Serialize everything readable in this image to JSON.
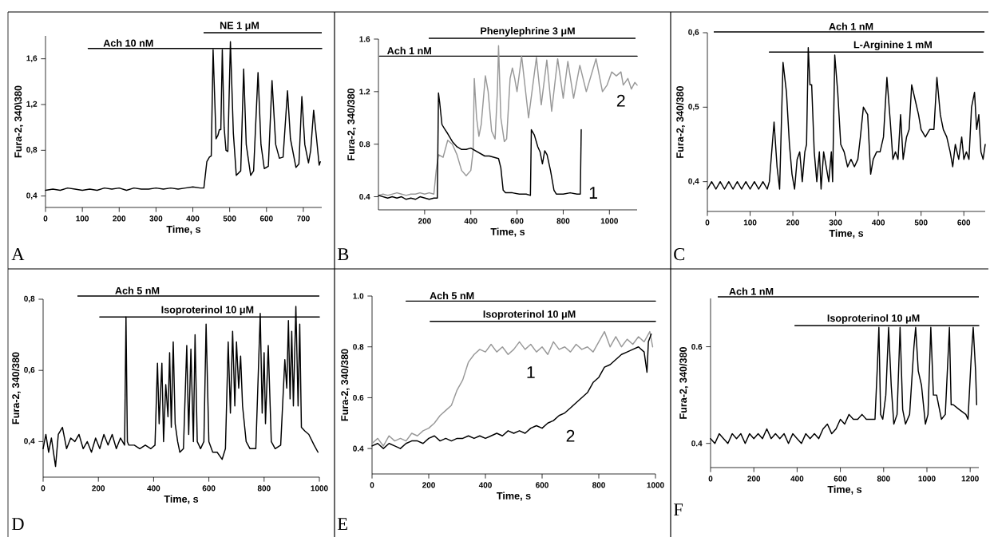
{
  "chart_data": [
    {
      "type": "line",
      "xlabel": "Time, s",
      "ylabel": "Fura-2, 340\\380",
      "xlim": [
        0,
        750
      ],
      "ylim": [
        0.3,
        1.8
      ],
      "xticks": [
        0,
        100,
        200,
        300,
        400,
        500,
        600,
        700
      ],
      "yticks": [
        {
          "value": 0.4,
          "label": "0,4"
        },
        {
          "value": 0.8,
          "label": "0,8"
        },
        {
          "value": 1.2,
          "label": "1,2"
        },
        {
          "value": 1.6,
          "label": "1,6"
        }
      ],
      "annotations": [
        "A",
        "NE 1 μM",
        {
          "text": "Ach 10 nM",
          "x": 225,
          "y": 1.69
        }
      ],
      "series": [
        {
          "color": "#000000",
          "x": [
            116,
            750
          ],
          "values": [
            1.69,
            1.69
          ]
        },
        {
          "color": "#000000",
          "x": [
            0,
            20,
            40,
            60,
            80,
            100,
            120,
            140,
            160,
            180,
            200,
            220,
            240,
            260,
            280,
            300,
            320,
            340,
            360,
            380,
            400,
            420,
            430,
            438,
            445,
            450,
            455,
            463,
            468,
            472,
            476,
            480,
            485,
            490,
            495,
            502,
            510,
            518,
            530,
            538,
            545,
            557,
            565,
            577,
            585,
            594,
            605,
            615,
            625,
            635,
            645,
            657,
            665,
            680,
            688,
            696,
            704,
            714,
            720,
            728,
            736,
            743,
            746
          ],
          "values": [
            0.45,
            0.46,
            0.45,
            0.47,
            0.46,
            0.45,
            0.46,
            0.45,
            0.47,
            0.46,
            0.47,
            0.45,
            0.47,
            0.46,
            0.46,
            0.47,
            0.46,
            0.47,
            0.46,
            0.47,
            0.48,
            0.47,
            0.47,
            0.7,
            0.74,
            0.75,
            1.68,
            0.9,
            0.93,
            0.98,
            0.98,
            1.68,
            1.0,
            0.8,
            0.79,
            1.75,
            0.95,
            0.58,
            0.62,
            1.51,
            0.85,
            0.58,
            0.62,
            1.48,
            0.85,
            0.64,
            0.66,
            1.41,
            0.85,
            0.73,
            0.74,
            1.32,
            0.9,
            0.65,
            0.68,
            1.27,
            0.85,
            0.69,
            0.8,
            1.15,
            0.9,
            0.67,
            0.7
          ]
        }
      ]
    },
    {
      "type": "line",
      "xlabel": "Time, s",
      "ylabel": "Fura-2, 340/380",
      "xlim": [
        0,
        1120
      ],
      "ylim": [
        0.3,
        1.6
      ],
      "xticks": [
        200,
        400,
        600,
        800,
        1000
      ],
      "yticks": [
        0.4,
        0.8,
        1.2,
        1.6
      ],
      "annotations": [
        "B",
        "Phenylephrine 3 μM",
        {
          "text": "Ach 1 nM",
          "x": 134,
          "y": 1.47
        }
      ],
      "series": [
        {
          "color": "#000000",
          "x": [
            5,
            1120
          ],
          "values": [
            1.47,
            1.47
          ]
        },
        {
          "name": "2",
          "color": "#999999",
          "x": [
            0,
            20,
            40,
            60,
            80,
            100,
            120,
            140,
            160,
            180,
            200,
            220,
            240,
            250,
            260,
            280,
            300,
            320,
            340,
            360,
            380,
            400,
            410,
            415,
            425,
            435,
            445,
            463,
            475,
            490,
            505,
            515,
            520,
            530,
            545,
            555,
            570,
            580,
            590,
            600,
            620,
            650,
            684,
            705,
            729,
            750,
            776,
            800,
            820,
            845,
            872,
            900,
            942,
            970,
            990,
            1010,
            1030,
            1050,
            1060,
            1080,
            1095,
            1110,
            1120
          ],
          "values": [
            0.41,
            0.42,
            0.41,
            0.42,
            0.43,
            0.42,
            0.41,
            0.42,
            0.42,
            0.43,
            0.42,
            0.43,
            0.42,
            0.6,
            0.72,
            0.7,
            0.83,
            0.8,
            0.72,
            0.6,
            0.56,
            0.6,
            0.75,
            1.3,
            1.0,
            0.86,
            0.95,
            1.32,
            1.2,
            0.9,
            0.84,
            1.2,
            1.55,
            1.0,
            0.82,
            0.84,
            1.3,
            1.38,
            1.3,
            1.2,
            1.47,
            1.0,
            1.46,
            1.1,
            1.44,
            1.05,
            1.45,
            1.15,
            1.43,
            1.15,
            1.4,
            1.2,
            1.45,
            1.2,
            1.25,
            1.35,
            1.32,
            1.35,
            1.25,
            1.3,
            1.22,
            1.27,
            1.25
          ]
        },
        {
          "name": "1",
          "color": "#000000",
          "x": [
            0,
            20,
            40,
            60,
            80,
            100,
            120,
            140,
            160,
            180,
            200,
            220,
            240,
            255,
            260,
            265,
            275,
            285,
            300,
            320,
            340,
            360,
            380,
            400,
            420,
            440,
            460,
            480,
            500,
            520,
            530,
            540,
            550,
            580,
            610,
            640,
            658,
            662,
            675,
            690,
            700,
            710,
            720,
            730,
            745,
            760,
            770,
            800,
            830,
            860,
            874,
            878
          ],
          "values": [
            0.41,
            0.4,
            0.39,
            0.4,
            0.39,
            0.4,
            0.38,
            0.39,
            0.38,
            0.4,
            0.39,
            0.38,
            0.39,
            0.39,
            1.19,
            1.12,
            0.95,
            0.92,
            0.88,
            0.82,
            0.78,
            0.76,
            0.76,
            0.77,
            0.75,
            0.73,
            0.71,
            0.71,
            0.7,
            0.69,
            0.62,
            0.45,
            0.43,
            0.43,
            0.42,
            0.42,
            0.41,
            0.91,
            0.87,
            0.78,
            0.74,
            0.65,
            0.75,
            0.72,
            0.6,
            0.45,
            0.42,
            0.42,
            0.43,
            0.42,
            0.42,
            0.91
          ]
        }
      ]
    },
    {
      "type": "line",
      "xlabel": "Time, s",
      "ylabel": "Fura-2, 340/380",
      "xlim": [
        0,
        650
      ],
      "ylim": [
        0.36,
        0.6
      ],
      "xticks": [
        0,
        100,
        200,
        300,
        400,
        500,
        600
      ],
      "yticks": [
        {
          "value": 0.4,
          "label": "0,4"
        },
        {
          "value": 0.5,
          "label": "0,5"
        },
        {
          "value": 0.6,
          "label": "0,6"
        }
      ],
      "annotations": [
        "C",
        "Ach 1 nM",
        {
          "text": "L-Arginine 1 mM",
          "x": 434,
          "y": 0.574
        }
      ],
      "series": [
        {
          "color": "#000000",
          "x": [
            145,
            645
          ],
          "values": [
            0.574,
            0.574
          ]
        },
        {
          "color": "#000000",
          "x": [
            0,
            10,
            20,
            30,
            40,
            50,
            60,
            70,
            80,
            90,
            100,
            110,
            120,
            130,
            140,
            145,
            156,
            163,
            169,
            177,
            185,
            192,
            198,
            204,
            210,
            216,
            222,
            228,
            232,
            236,
            240,
            244,
            250,
            256,
            262,
            266,
            272,
            278,
            284,
            290,
            293,
            298,
            305,
            312,
            320,
            328,
            336,
            344,
            352,
            358,
            365,
            375,
            382,
            388,
            396,
            404,
            412,
            420,
            428,
            434,
            440,
            446,
            452,
            458,
            466,
            472,
            478,
            486,
            494,
            500,
            510,
            520,
            530,
            537,
            545,
            552,
            560,
            568,
            574,
            580,
            588,
            595,
            600,
            606,
            612,
            618,
            625,
            630,
            635,
            640,
            645,
            650
          ],
          "values": [
            0.39,
            0.4,
            0.39,
            0.4,
            0.39,
            0.4,
            0.39,
            0.4,
            0.39,
            0.4,
            0.39,
            0.4,
            0.39,
            0.4,
            0.39,
            0.4,
            0.48,
            0.42,
            0.39,
            0.56,
            0.52,
            0.45,
            0.41,
            0.39,
            0.43,
            0.44,
            0.4,
            0.44,
            0.45,
            0.58,
            0.53,
            0.53,
            0.44,
            0.4,
            0.44,
            0.39,
            0.44,
            0.42,
            0.4,
            0.44,
            0.4,
            0.57,
            0.52,
            0.45,
            0.44,
            0.42,
            0.43,
            0.42,
            0.43,
            0.46,
            0.5,
            0.49,
            0.41,
            0.43,
            0.44,
            0.44,
            0.46,
            0.54,
            0.48,
            0.43,
            0.44,
            0.43,
            0.49,
            0.43,
            0.46,
            0.47,
            0.53,
            0.51,
            0.49,
            0.47,
            0.46,
            0.47,
            0.47,
            0.54,
            0.49,
            0.47,
            0.46,
            0.44,
            0.42,
            0.45,
            0.43,
            0.46,
            0.43,
            0.44,
            0.43,
            0.5,
            0.52,
            0.47,
            0.49,
            0.44,
            0.43,
            0.45
          ]
        }
      ]
    },
    {
      "type": "line",
      "xlabel": "Time, s",
      "ylabel": "Fura-2, 340/380",
      "xlim": [
        0,
        1000
      ],
      "ylim": [
        0.3,
        0.8
      ],
      "xticks": [
        0,
        200,
        400,
        600,
        800,
        1000
      ],
      "yticks": [
        {
          "value": 0.4,
          "label": "0,4"
        },
        {
          "value": 0.6,
          "label": "0,6"
        },
        {
          "value": 0.8,
          "label": "0,8"
        }
      ],
      "annotations": [
        "D",
        "Ach 5 nM",
        {
          "text": "Isoproterinol 10 μM",
          "x": 595,
          "y": 0.75
        }
      ],
      "series": [
        {
          "color": "#000000",
          "x": [
            205,
            1000
          ],
          "values": [
            0.75,
            0.75
          ]
        },
        {
          "color": "#000000",
          "x": [
            0,
            10,
            20,
            30,
            45,
            55,
            70,
            85,
            100,
            115,
            130,
            145,
            160,
            175,
            190,
            205,
            220,
            235,
            250,
            265,
            280,
            295,
            300,
            305,
            310,
            330,
            350,
            370,
            390,
            405,
            414,
            420,
            430,
            436,
            444,
            452,
            458,
            464,
            471,
            478,
            487,
            495,
            508,
            520,
            527,
            535,
            544,
            550,
            558,
            570,
            582,
            590,
            600,
            614,
            630,
            648,
            660,
            670,
            678,
            686,
            694,
            700,
            708,
            715,
            722,
            735,
            749,
            770,
            786,
            793,
            800,
            805,
            815,
            826,
            840,
            860,
            875,
            882,
            888,
            894,
            900,
            906,
            915,
            923,
            929,
            935,
            947,
            962,
            981,
            995
          ],
          "values": [
            0.38,
            0.42,
            0.37,
            0.41,
            0.33,
            0.42,
            0.44,
            0.38,
            0.41,
            0.4,
            0.42,
            0.38,
            0.4,
            0.37,
            0.41,
            0.38,
            0.42,
            0.39,
            0.42,
            0.38,
            0.41,
            0.39,
            0.75,
            0.4,
            0.39,
            0.39,
            0.38,
            0.39,
            0.38,
            0.39,
            0.62,
            0.45,
            0.62,
            0.4,
            0.56,
            0.47,
            0.65,
            0.44,
            0.68,
            0.45,
            0.4,
            0.37,
            0.38,
            0.67,
            0.42,
            0.66,
            0.4,
            0.7,
            0.4,
            0.38,
            0.4,
            0.73,
            0.4,
            0.37,
            0.37,
            0.35,
            0.38,
            0.68,
            0.48,
            0.71,
            0.5,
            0.68,
            0.55,
            0.64,
            0.5,
            0.4,
            0.38,
            0.38,
            0.76,
            0.48,
            0.65,
            0.45,
            0.67,
            0.4,
            0.38,
            0.39,
            0.63,
            0.55,
            0.74,
            0.52,
            0.71,
            0.5,
            0.78,
            0.5,
            0.73,
            0.44,
            0.43,
            0.42,
            0.39,
            0.37
          ]
        }
      ]
    },
    {
      "type": "line",
      "xlabel": "Time, s",
      "ylabel": "Fura-2, 340/380",
      "xlim": [
        0,
        1000
      ],
      "ylim": [
        0.3,
        1.0
      ],
      "xticks": [
        0,
        200,
        400,
        600,
        800,
        1000
      ],
      "yticks": [
        0.4,
        0.6,
        0.8,
        {
          "value": 1.0,
          "label": "1.0"
        }
      ],
      "annotations": [
        "E",
        {
          "text": "Ach 5 nM",
          "x": 282,
          "y": 0.98
        },
        {
          "text": "Isoproterinol 10 μM",
          "x": 555,
          "y": 0.9
        }
      ],
      "series": [
        {
          "color": "#000000",
          "x": [
            120,
            1000
          ],
          "values": [
            0.98,
            0.98
          ]
        },
        {
          "color": "#000000",
          "x": [
            205,
            1000
          ],
          "values": [
            0.9,
            0.9
          ]
        },
        {
          "name": "1",
          "color": "#999999",
          "x": [
            0,
            20,
            40,
            60,
            80,
            100,
            120,
            140,
            160,
            180,
            200,
            220,
            240,
            260,
            280,
            300,
            320,
            340,
            360,
            380,
            400,
            420,
            440,
            460,
            480,
            500,
            520,
            540,
            560,
            580,
            600,
            620,
            640,
            660,
            680,
            700,
            720,
            740,
            760,
            780,
            800,
            820,
            840,
            860,
            880,
            900,
            920,
            940,
            960,
            980,
            990
          ],
          "values": [
            0.42,
            0.44,
            0.41,
            0.45,
            0.43,
            0.44,
            0.43,
            0.46,
            0.45,
            0.47,
            0.48,
            0.5,
            0.53,
            0.55,
            0.57,
            0.63,
            0.67,
            0.74,
            0.77,
            0.79,
            0.78,
            0.81,
            0.78,
            0.8,
            0.77,
            0.79,
            0.82,
            0.79,
            0.81,
            0.78,
            0.8,
            0.77,
            0.82,
            0.79,
            0.8,
            0.78,
            0.81,
            0.79,
            0.8,
            0.78,
            0.82,
            0.86,
            0.8,
            0.84,
            0.8,
            0.83,
            0.81,
            0.84,
            0.82,
            0.86,
            0.8
          ]
        },
        {
          "name": "2",
          "color": "#000000",
          "x": [
            0,
            20,
            40,
            60,
            80,
            100,
            120,
            140,
            160,
            180,
            200,
            220,
            240,
            260,
            280,
            300,
            320,
            340,
            360,
            380,
            400,
            420,
            440,
            460,
            480,
            500,
            520,
            540,
            560,
            580,
            600,
            620,
            640,
            660,
            680,
            700,
            720,
            740,
            760,
            780,
            800,
            820,
            840,
            860,
            880,
            900,
            920,
            940,
            960,
            970,
            975,
            985
          ],
          "values": [
            0.41,
            0.42,
            0.4,
            0.42,
            0.41,
            0.4,
            0.42,
            0.43,
            0.43,
            0.42,
            0.44,
            0.45,
            0.43,
            0.44,
            0.43,
            0.44,
            0.44,
            0.45,
            0.44,
            0.45,
            0.44,
            0.45,
            0.46,
            0.45,
            0.47,
            0.46,
            0.47,
            0.46,
            0.48,
            0.49,
            0.48,
            0.5,
            0.51,
            0.53,
            0.54,
            0.56,
            0.58,
            0.6,
            0.62,
            0.66,
            0.68,
            0.72,
            0.73,
            0.75,
            0.77,
            0.78,
            0.79,
            0.8,
            0.78,
            0.7,
            0.82,
            0.85
          ]
        }
      ]
    },
    {
      "type": "line",
      "xlabel": "Time, s",
      "ylabel": "Fura-2, 340/380",
      "xlim": [
        0,
        1240
      ],
      "ylim": [
        0.35,
        0.7
      ],
      "xticks": [
        0,
        200,
        400,
        600,
        800,
        1000,
        1200
      ],
      "yticks": [
        0.4,
        0.6
      ],
      "annotations": [
        "F",
        "Ach 1 nM",
        {
          "text": "Isoproterinol 10 μM",
          "x": 753,
          "y": 0.644
        }
      ],
      "series": [
        {
          "color": "#000000",
          "x": [
            390,
            1240
          ],
          "values": [
            0.644,
            0.644
          ]
        },
        {
          "color": "#000000",
          "x": [
            0,
            20,
            40,
            60,
            80,
            100,
            120,
            140,
            160,
            180,
            200,
            220,
            240,
            260,
            280,
            300,
            320,
            340,
            360,
            380,
            400,
            420,
            440,
            460,
            480,
            500,
            520,
            540,
            560,
            580,
            600,
            620,
            640,
            660,
            680,
            700,
            720,
            740,
            760,
            770,
            778,
            786,
            796,
            810,
            823,
            835,
            847,
            862,
            876,
            888,
            901,
            920,
            940,
            948,
            960,
            975,
            993,
            1005,
            1018,
            1030,
            1045,
            1067,
            1085,
            1104,
            1112,
            1122,
            1150,
            1180,
            1190,
            1205,
            1214,
            1225,
            1230
          ],
          "values": [
            0.41,
            0.4,
            0.42,
            0.41,
            0.4,
            0.42,
            0.41,
            0.42,
            0.4,
            0.42,
            0.41,
            0.42,
            0.41,
            0.43,
            0.41,
            0.42,
            0.41,
            0.42,
            0.4,
            0.42,
            0.41,
            0.4,
            0.42,
            0.41,
            0.42,
            0.41,
            0.43,
            0.44,
            0.42,
            0.43,
            0.45,
            0.44,
            0.46,
            0.45,
            0.45,
            0.46,
            0.45,
            0.45,
            0.45,
            0.55,
            0.64,
            0.46,
            0.45,
            0.5,
            0.64,
            0.52,
            0.44,
            0.46,
            0.64,
            0.47,
            0.44,
            0.46,
            0.6,
            0.64,
            0.55,
            0.52,
            0.44,
            0.46,
            0.64,
            0.5,
            0.5,
            0.45,
            0.46,
            0.64,
            0.48,
            0.48,
            0.47,
            0.46,
            0.45,
            0.58,
            0.64,
            0.55,
            0.48
          ]
        }
      ]
    }
  ]
}
